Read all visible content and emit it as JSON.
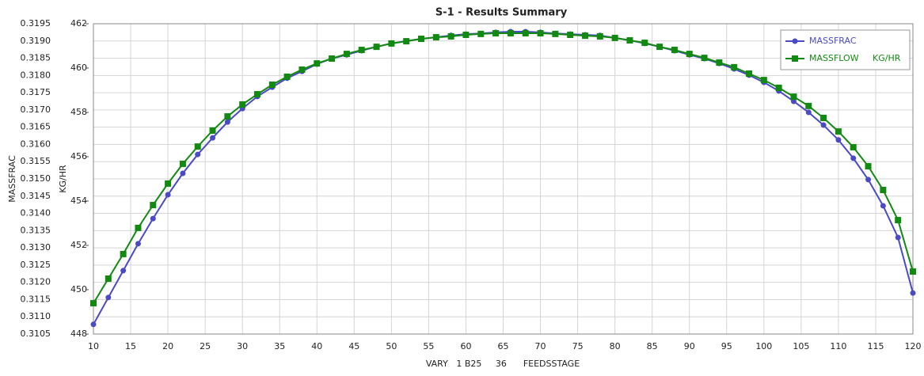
{
  "chart_data": {
    "type": "line",
    "title": "S-1 - Results Summary",
    "x_label": "VARY   1 B25     36      FEEDSSTAGE",
    "y_label": "MASSFRAC",
    "y2_label": "KG/HR",
    "x": [
      10,
      12,
      14,
      16,
      18,
      20,
      22,
      24,
      26,
      28,
      30,
      32,
      34,
      36,
      38,
      40,
      42,
      44,
      46,
      48,
      50,
      52,
      54,
      56,
      58,
      60,
      62,
      64,
      66,
      68,
      70,
      72,
      74,
      76,
      78,
      80,
      82,
      84,
      86,
      88,
      90,
      92,
      94,
      96,
      98,
      100,
      102,
      104,
      106,
      108,
      110,
      112,
      114,
      116,
      118,
      120
    ],
    "xlim": [
      10,
      120
    ],
    "xticks": [
      10,
      15,
      20,
      25,
      30,
      35,
      40,
      45,
      50,
      55,
      60,
      65,
      70,
      75,
      80,
      85,
      90,
      95,
      100,
      105,
      110,
      115,
      120
    ],
    "ylim": [
      0.3105,
      0.3195
    ],
    "yticks": [
      0.3105,
      {
        "value": 0.311,
        "label": "0.3110"
      },
      0.3115,
      {
        "value": 0.312,
        "label": "0.3120"
      },
      0.3125,
      {
        "value": 0.313,
        "label": "0.3130"
      },
      0.3135,
      {
        "value": 0.314,
        "label": "0.3140"
      },
      0.3145,
      {
        "value": 0.315,
        "label": "0.3150"
      },
      0.3155,
      {
        "value": 0.316,
        "label": "0.3160"
      },
      0.3165,
      {
        "value": 0.317,
        "label": "0.3170"
      },
      0.3175,
      {
        "value": 0.318,
        "label": "0.3180"
      },
      0.3185,
      {
        "value": 0.319,
        "label": "0.3190"
      },
      0.3195
    ],
    "y2lim": [
      448,
      462
    ],
    "y2ticks": [
      448,
      450,
      452,
      454,
      456,
      458,
      460,
      462
    ],
    "grid": true,
    "legend": "upper right",
    "series": [
      {
        "name": "MASSFRAC",
        "color": "#4a4ac4",
        "marker": "circle",
        "values": [
          0.31078,
          0.31156,
          0.31234,
          0.31312,
          0.31385,
          0.31454,
          0.31516,
          0.31571,
          0.31619,
          0.31665,
          0.31704,
          0.31739,
          0.31766,
          0.31792,
          0.31812,
          0.31833,
          0.31849,
          0.3186,
          0.31872,
          0.31883,
          0.31893,
          0.319,
          0.31906,
          0.31911,
          0.31916,
          0.3192,
          0.31922,
          0.31925,
          0.31927,
          0.31927,
          0.31925,
          0.31922,
          0.3192,
          0.31918,
          0.31916,
          0.31909,
          0.31902,
          0.31893,
          0.31883,
          0.31872,
          0.3186,
          0.31849,
          0.31835,
          0.31819,
          0.31801,
          0.3178,
          0.31755,
          0.31725,
          0.31693,
          0.31656,
          0.31613,
          0.3156,
          0.31498,
          0.31422,
          0.3133,
          0.31169
        ]
      },
      {
        "name": "MASSFLOW     KG/HR",
        "color": "#128a12",
        "marker": "square",
        "axis": "y2",
        "values": [
          449.39,
          450.5,
          451.61,
          452.79,
          453.82,
          454.79,
          455.68,
          456.46,
          457.18,
          457.82,
          458.36,
          458.82,
          459.25,
          459.61,
          459.93,
          460.21,
          460.43,
          460.64,
          460.82,
          460.96,
          461.11,
          461.21,
          461.32,
          461.39,
          461.43,
          461.5,
          461.54,
          461.57,
          461.57,
          461.57,
          461.57,
          461.54,
          461.5,
          461.46,
          461.43,
          461.36,
          461.25,
          461.14,
          460.96,
          460.82,
          460.64,
          460.46,
          460.25,
          460.04,
          459.75,
          459.46,
          459.11,
          458.71,
          458.29,
          457.75,
          457.14,
          456.43,
          455.57,
          454.5,
          453.14,
          450.82
        ]
      }
    ]
  }
}
